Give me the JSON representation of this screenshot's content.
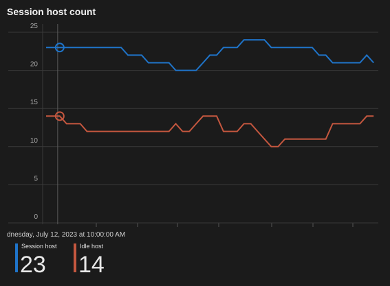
{
  "chart_data": {
    "type": "line",
    "title": "Session host count",
    "hover_label": "dnesday, July 12, 2023 at 10:00:00 AM",
    "ylim": [
      0,
      25
    ],
    "yticks": [
      0,
      5,
      10,
      15,
      20,
      25
    ],
    "grid": true,
    "series": [
      {
        "name": "Session host",
        "color": "#1f74c9",
        "values": [
          23,
          23,
          23,
          23,
          23,
          23,
          23,
          23,
          23,
          23,
          23,
          23,
          22,
          22,
          22,
          21,
          21,
          21,
          21,
          20,
          20,
          20,
          20,
          21,
          22,
          22,
          23,
          23,
          23,
          24,
          24,
          24,
          24,
          23,
          23,
          23,
          23,
          23,
          23,
          23,
          22,
          22,
          21,
          21,
          21,
          21,
          21,
          22,
          21
        ]
      },
      {
        "name": "Idle host",
        "color": "#c5573f",
        "values": [
          14,
          14,
          14,
          13,
          13,
          13,
          12,
          12,
          12,
          12,
          12,
          12,
          12,
          12,
          12,
          12,
          12,
          12,
          12,
          13,
          12,
          12,
          13,
          14,
          14,
          14,
          12,
          12,
          12,
          13,
          13,
          12,
          11,
          10,
          10,
          11,
          11,
          11,
          11,
          11,
          11,
          11,
          13,
          13,
          13,
          13,
          13,
          14,
          14
        ]
      }
    ]
  }
}
